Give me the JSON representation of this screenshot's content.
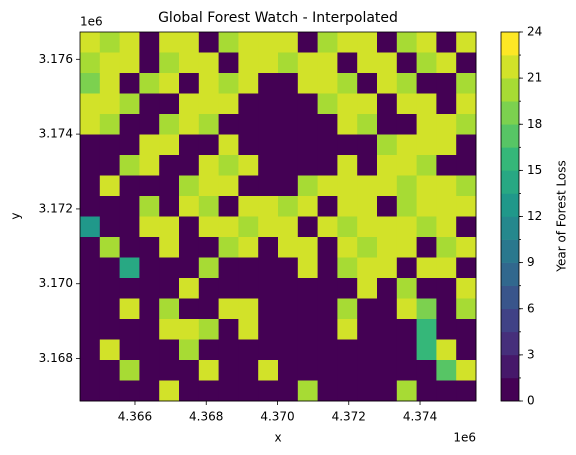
{
  "chart_data": {
    "type": "heatmap",
    "title": "Global Forest Watch - Interpolated",
    "xlabel": "x",
    "ylabel": "y",
    "x_offset_label": "1e6",
    "y_offset_label": "1e6",
    "xlim": [
      4364457,
      4375571
    ],
    "ylim": [
      3166865,
      3176730
    ],
    "xticks": [
      {
        "value": 4366000,
        "label": "4.366"
      },
      {
        "value": 4368000,
        "label": "4.368"
      },
      {
        "value": 4370000,
        "label": "4.370"
      },
      {
        "value": 4372000,
        "label": "4.372"
      },
      {
        "value": 4374000,
        "label": "4.374"
      }
    ],
    "yticks": [
      {
        "value": 3168000,
        "label": "3.168"
      },
      {
        "value": 3170000,
        "label": "3.170"
      },
      {
        "value": 3172000,
        "label": "3.172"
      },
      {
        "value": 3174000,
        "label": "3.174"
      },
      {
        "value": 3176000,
        "label": "3.176"
      }
    ],
    "colormap": "viridis",
    "colorbar_label": "Year of Forest Loss",
    "clim": [
      0,
      24
    ],
    "cticks": [
      0,
      3,
      6,
      9,
      12,
      15,
      18,
      21,
      24
    ],
    "levels": [
      0,
      1.5,
      3,
      4.5,
      6,
      7.5,
      9,
      10.5,
      12,
      13.5,
      15,
      16.5,
      18,
      19.5,
      21,
      22.5,
      24
    ],
    "z": [
      [
        21,
        20,
        22,
        0,
        21,
        22,
        0,
        20,
        21,
        22,
        21,
        0,
        20,
        22,
        21,
        0,
        20,
        21,
        0,
        22
      ],
      [
        20,
        22,
        21,
        0,
        20,
        21,
        22,
        0,
        22,
        21,
        20,
        22,
        21,
        0,
        21,
        22,
        0,
        20,
        21,
        0
      ],
      [
        19,
        21,
        0,
        20,
        22,
        0,
        21,
        20,
        21,
        0,
        0,
        21,
        22,
        20,
        0,
        21,
        20,
        0,
        0,
        20
      ],
      [
        22,
        21,
        20,
        0,
        0,
        21,
        22,
        21,
        0,
        0,
        0,
        0,
        20,
        21,
        22,
        0,
        21,
        22,
        0,
        21
      ],
      [
        21,
        20,
        0,
        0,
        20,
        21,
        20,
        0,
        0,
        0,
        0,
        0,
        0,
        21,
        20,
        0,
        0,
        21,
        22,
        20
      ],
      [
        0,
        0,
        0,
        21,
        22,
        0,
        0,
        21,
        0,
        0,
        0,
        0,
        0,
        0,
        0,
        20,
        21,
        22,
        21,
        0
      ],
      [
        0,
        0,
        20,
        21,
        0,
        0,
        21,
        20,
        22,
        0,
        0,
        0,
        0,
        21,
        0,
        22,
        21,
        20,
        0,
        0
      ],
      [
        0,
        21,
        0,
        0,
        0,
        20,
        22,
        21,
        0,
        0,
        0,
        20,
        22,
        21,
        22,
        21,
        20,
        22,
        21,
        20
      ],
      [
        0,
        0,
        0,
        20,
        0,
        21,
        20,
        0,
        21,
        22,
        20,
        21,
        0,
        22,
        21,
        0,
        20,
        21,
        22,
        21
      ],
      [
        12,
        0,
        0,
        21,
        22,
        0,
        21,
        22,
        20,
        21,
        22,
        0,
        21,
        20,
        22,
        21,
        22,
        20,
        21,
        0
      ],
      [
        0,
        20,
        0,
        0,
        21,
        0,
        0,
        20,
        21,
        0,
        21,
        22,
        0,
        21,
        20,
        22,
        21,
        0,
        20,
        21
      ],
      [
        0,
        0,
        14,
        0,
        0,
        0,
        20,
        0,
        0,
        0,
        0,
        21,
        0,
        20,
        21,
        22,
        0,
        21,
        22,
        0
      ],
      [
        0,
        0,
        0,
        0,
        0,
        21,
        0,
        0,
        0,
        0,
        0,
        0,
        0,
        0,
        21,
        0,
        20,
        0,
        0,
        21
      ],
      [
        0,
        0,
        21,
        0,
        20,
        0,
        0,
        21,
        22,
        0,
        0,
        0,
        0,
        20,
        0,
        0,
        21,
        18,
        0,
        20
      ],
      [
        0,
        0,
        0,
        0,
        21,
        22,
        20,
        0,
        21,
        0,
        0,
        0,
        0,
        21,
        0,
        0,
        0,
        15,
        0,
        0
      ],
      [
        0,
        21,
        0,
        0,
        0,
        20,
        0,
        0,
        0,
        0,
        0,
        0,
        0,
        0,
        0,
        0,
        0,
        16,
        22,
        0
      ],
      [
        0,
        0,
        20,
        0,
        0,
        0,
        21,
        0,
        0,
        21,
        0,
        0,
        0,
        0,
        0,
        0,
        0,
        0,
        17,
        21
      ],
      [
        0,
        0,
        0,
        0,
        21,
        0,
        0,
        0,
        0,
        0,
        0,
        20,
        0,
        0,
        0,
        0,
        20,
        0,
        0,
        0
      ]
    ]
  }
}
